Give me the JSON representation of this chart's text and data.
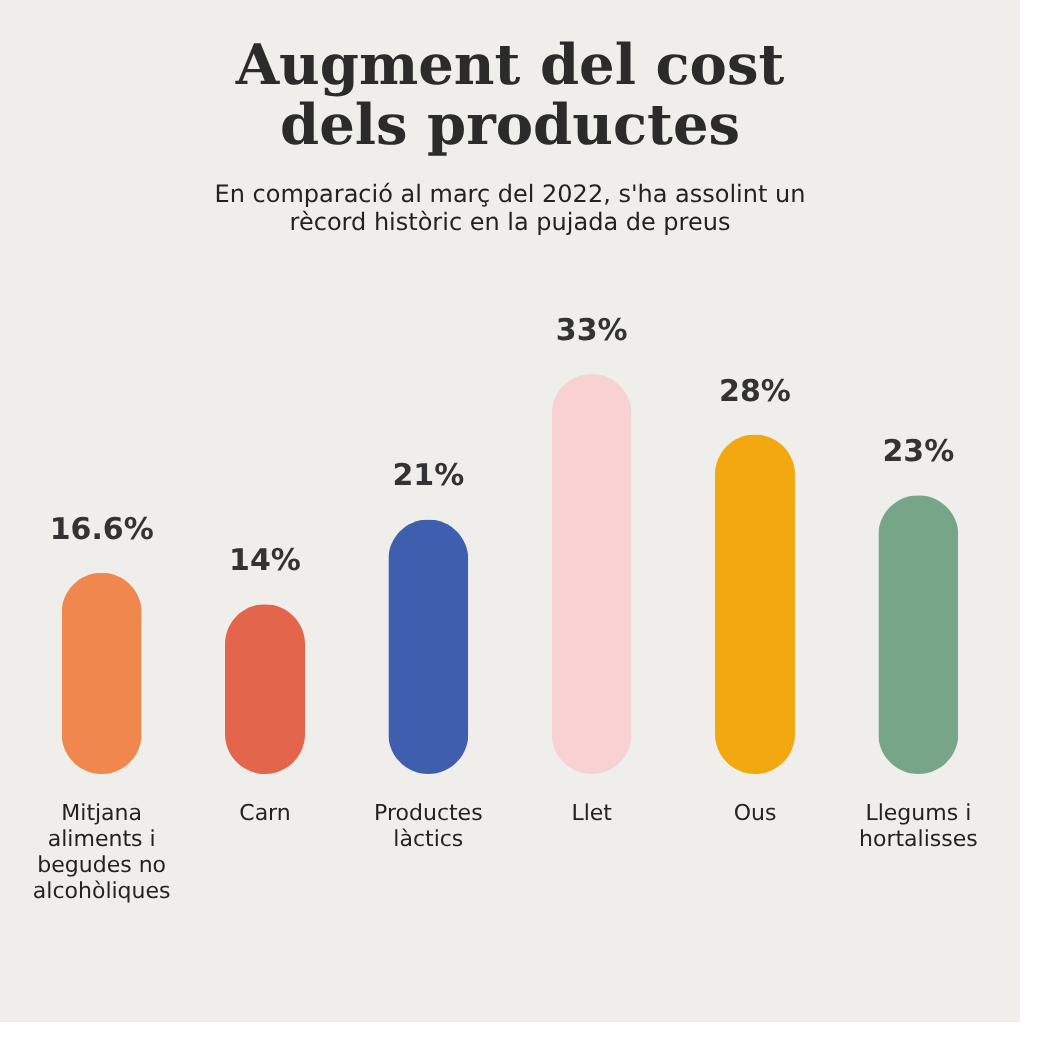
{
  "chart_data": {
    "type": "bar",
    "title": "Augment del cost dels productes",
    "subtitle": "En comparació al març del 2022, s'ha assolint un rècord històric en la pujada de preus",
    "categories": [
      "Mitjana aliments i begudes no alcohòliques",
      "Carn",
      "Productes làctics",
      "Llet",
      "Ous",
      "Llegums i hortalisses"
    ],
    "values": [
      16.6,
      14,
      21,
      33,
      28,
      23
    ],
    "colors": [
      "#f0874e",
      "#e3654b",
      "#3f5fae",
      "#f8d2d3",
      "#f2a90f",
      "#76a687"
    ],
    "value_labels": [
      "16.6%",
      "14%",
      "21%",
      "33%",
      "28%",
      "23%"
    ]
  }
}
